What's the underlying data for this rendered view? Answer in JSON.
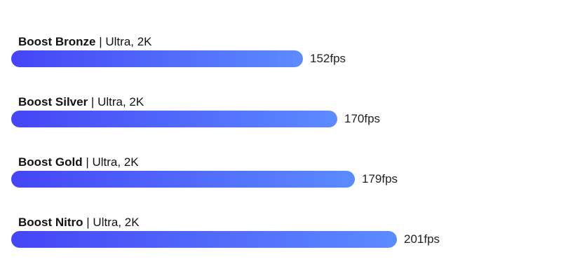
{
  "chart_data": {
    "type": "bar",
    "orientation": "horizontal",
    "categories": [
      "Boost Bronze",
      "Boost Silver",
      "Boost Gold",
      "Boost Nitro"
    ],
    "settings": "Ultra, 2K",
    "separator": "|",
    "values": [
      152,
      170,
      179,
      201
    ],
    "unit": "fps",
    "value_labels": [
      "152fps",
      "170fps",
      "179fps",
      "201fps"
    ],
    "title": "",
    "xlabel": "",
    "ylabel": "",
    "grid": false,
    "legend": "none",
    "colors": {
      "bar_start": "#4545f5",
      "bar_end": "#5c8bff",
      "text": "#111111"
    }
  }
}
